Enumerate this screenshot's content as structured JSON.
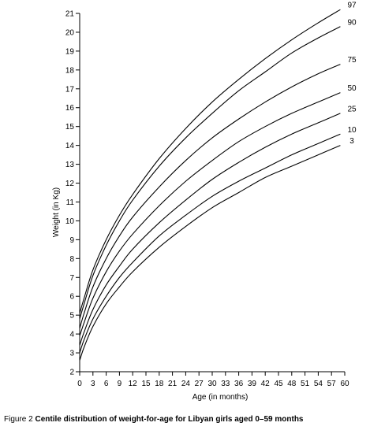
{
  "chart_data": {
    "type": "line",
    "xlabel": "Age (in months)",
    "ylabel": "Weight (in Kg)",
    "xlim": [
      0,
      60
    ],
    "ylim": [
      2,
      21
    ],
    "x_ticks": [
      0,
      3,
      6,
      9,
      12,
      15,
      18,
      21,
      24,
      27,
      30,
      33,
      36,
      39,
      42,
      45,
      48,
      51,
      54,
      57,
      60
    ],
    "y_ticks": [
      2,
      3,
      4,
      5,
      6,
      7,
      8,
      9,
      10,
      11,
      12,
      13,
      14,
      15,
      16,
      17,
      18,
      19,
      20,
      21
    ],
    "x": [
      0,
      1,
      3,
      6,
      9,
      12,
      18,
      24,
      30,
      36,
      42,
      48,
      54,
      59
    ],
    "series": [
      {
        "name": "97",
        "values": [
          5.1,
          5.9,
          7.4,
          9.0,
          10.3,
          11.4,
          13.3,
          14.9,
          16.3,
          17.5,
          18.6,
          19.6,
          20.5,
          21.2
        ]
      },
      {
        "name": "90",
        "values": [
          4.8,
          5.6,
          7.1,
          8.7,
          10.0,
          11.1,
          12.9,
          14.4,
          15.7,
          16.9,
          17.9,
          18.9,
          19.7,
          20.3
        ]
      },
      {
        "name": "75",
        "values": [
          4.3,
          5.1,
          6.5,
          8.0,
          9.2,
          10.2,
          11.8,
          13.2,
          14.4,
          15.4,
          16.3,
          17.1,
          17.8,
          18.3
        ]
      },
      {
        "name": "50",
        "values": [
          3.9,
          4.6,
          5.9,
          7.3,
          8.4,
          9.3,
          10.8,
          12.1,
          13.2,
          14.2,
          15.0,
          15.7,
          16.3,
          16.8
        ]
      },
      {
        "name": "25",
        "values": [
          3.4,
          4.1,
          5.3,
          6.6,
          7.6,
          8.5,
          9.9,
          11.1,
          12.2,
          13.1,
          13.9,
          14.6,
          15.2,
          15.7
        ]
      },
      {
        "name": "10",
        "values": [
          3.0,
          3.7,
          4.8,
          6.0,
          7.0,
          7.8,
          9.2,
          10.3,
          11.3,
          12.1,
          12.8,
          13.5,
          14.1,
          14.6
        ]
      },
      {
        "name": "3",
        "values": [
          2.6,
          3.3,
          4.4,
          5.6,
          6.5,
          7.3,
          8.6,
          9.7,
          10.7,
          11.5,
          12.3,
          12.9,
          13.5,
          14.0
        ]
      }
    ]
  },
  "caption": {
    "prefix": "Figure 2 ",
    "title": "Centile distribution of weight-for-age for Libyan girls aged 0–59 months"
  }
}
